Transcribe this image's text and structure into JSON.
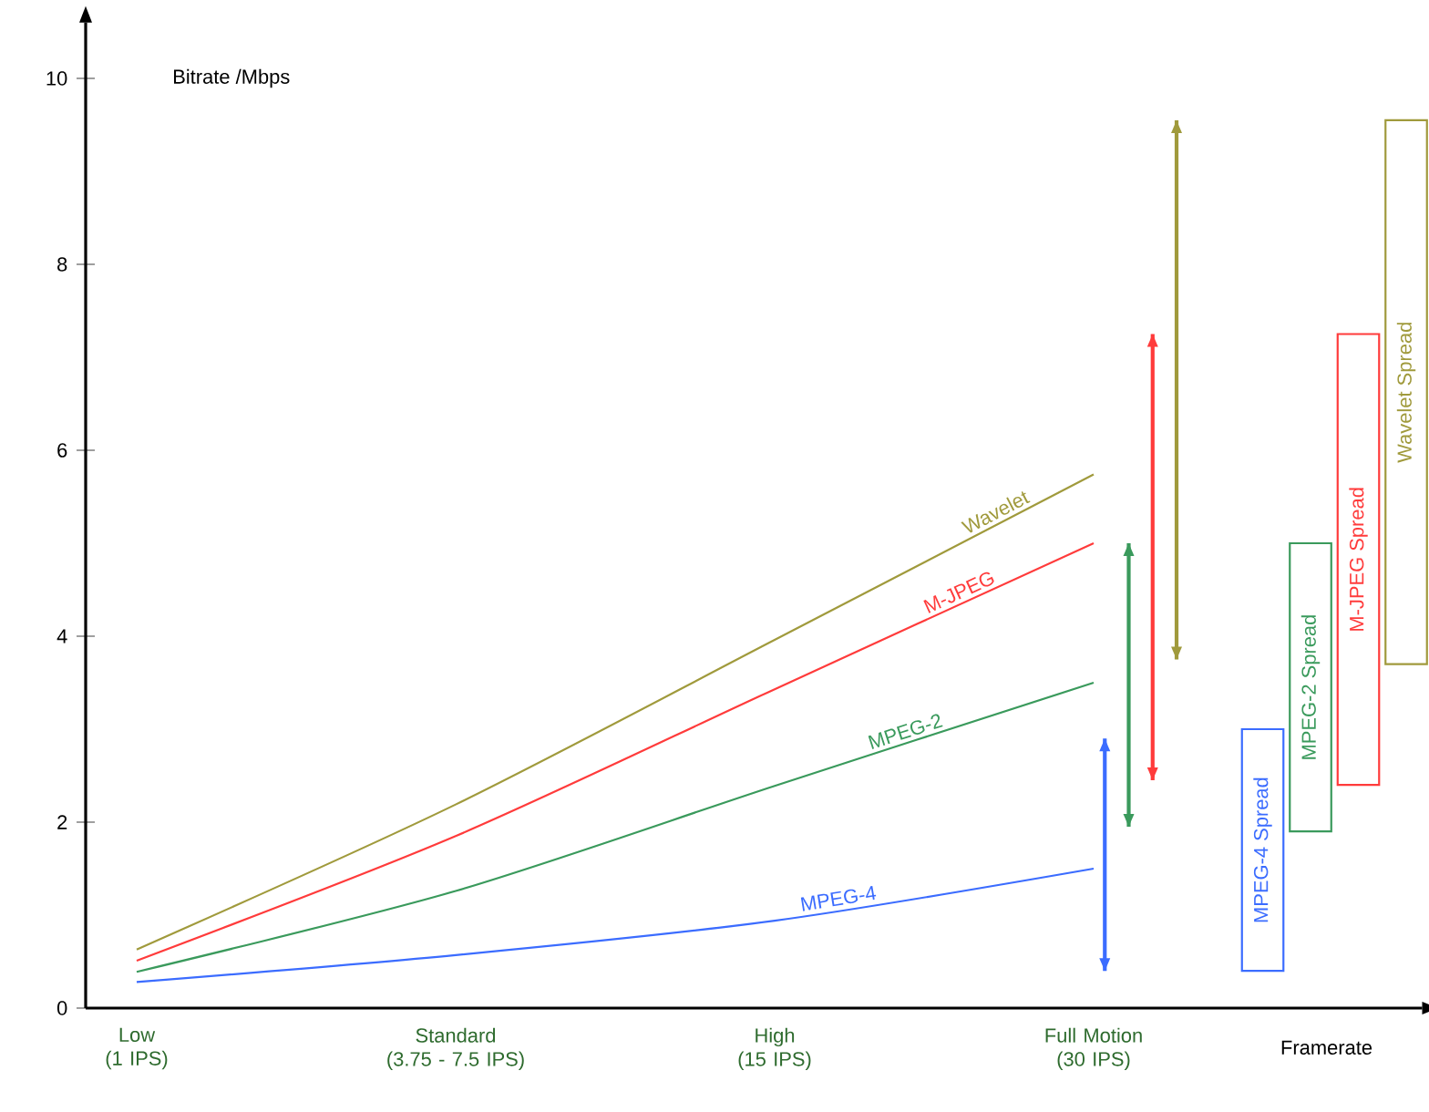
{
  "chart_data": {
    "type": "line",
    "xlabel": "Framerate",
    "ylabel": "Bitrate /Mbps",
    "categories": [
      "Low\n(1 IPS)",
      "Standard\n(3.75 - 7.5 IPS)",
      "High\n(15 IPS)",
      "Full Motion\n(30 IPS)",
      null
    ],
    "ylim": [
      0,
      10.6
    ],
    "yticks": [
      0,
      2,
      4,
      6,
      8,
      10
    ],
    "marker": "none",
    "line_style": "solid",
    "series": [
      {
        "name": "Wavelet",
        "color": "#a09a3c",
        "values": [
          0.63,
          2.19,
          3.96,
          5.74,
          null
        ]
      },
      {
        "name": "M-JPEG",
        "color": "#ff3b3b",
        "values": [
          0.51,
          1.85,
          3.43,
          5.0,
          null
        ]
      },
      {
        "name": "MPEG-2",
        "color": "#3a9a5c",
        "values": [
          0.39,
          1.26,
          2.39,
          3.5,
          null
        ]
      },
      {
        "name": "MPEG-4",
        "color": "#3b6cff",
        "values": [
          0.28,
          0.57,
          0.94,
          1.5,
          null
        ]
      },
      {
        "type": "bar",
        "color": "#3b6cff",
        "base": [
          null,
          null,
          null,
          0.4,
          null
        ],
        "values": [
          null,
          null,
          null,
          2.5,
          null
        ]
      },
      {
        "type": "bar",
        "color": "#3a9a5c",
        "base": [
          null,
          null,
          null,
          1.95,
          null
        ],
        "values": [
          null,
          null,
          null,
          3.05,
          null
        ]
      },
      {
        "type": "bar",
        "color": "#ff3b3b",
        "base": [
          null,
          null,
          null,
          2.45,
          null
        ],
        "values": [
          null,
          null,
          null,
          4.8,
          null
        ]
      },
      {
        "type": "bar",
        "color": "#a09a3c",
        "base": [
          null,
          null,
          null,
          3.75,
          null
        ],
        "values": [
          null,
          null,
          null,
          5.8,
          null
        ]
      },
      {
        "name": "MPEG-4 Spread",
        "type": "bar",
        "color": "#3b6cff",
        "base": [
          null,
          null,
          null,
          null,
          0.4
        ],
        "values": [
          null,
          null,
          null,
          null,
          2.6
        ]
      },
      {
        "name": "MPEG-2 Spread",
        "type": "bar",
        "color": "#3a9a5c",
        "base": [
          null,
          null,
          null,
          null,
          1.9
        ],
        "values": [
          null,
          null,
          null,
          null,
          3.1
        ]
      },
      {
        "name": "M-JPEG Spread",
        "type": "bar",
        "color": "#ff3b3b",
        "base": [
          null,
          null,
          null,
          null,
          2.4
        ],
        "values": [
          null,
          null,
          null,
          null,
          4.85
        ]
      },
      {
        "name": "Wavelet Spread",
        "type": "bar",
        "color": "#a09a3c",
        "base": [
          null,
          null,
          null,
          null,
          3.7
        ],
        "values": [
          null,
          null,
          null,
          null,
          5.85
        ]
      }
    ]
  }
}
